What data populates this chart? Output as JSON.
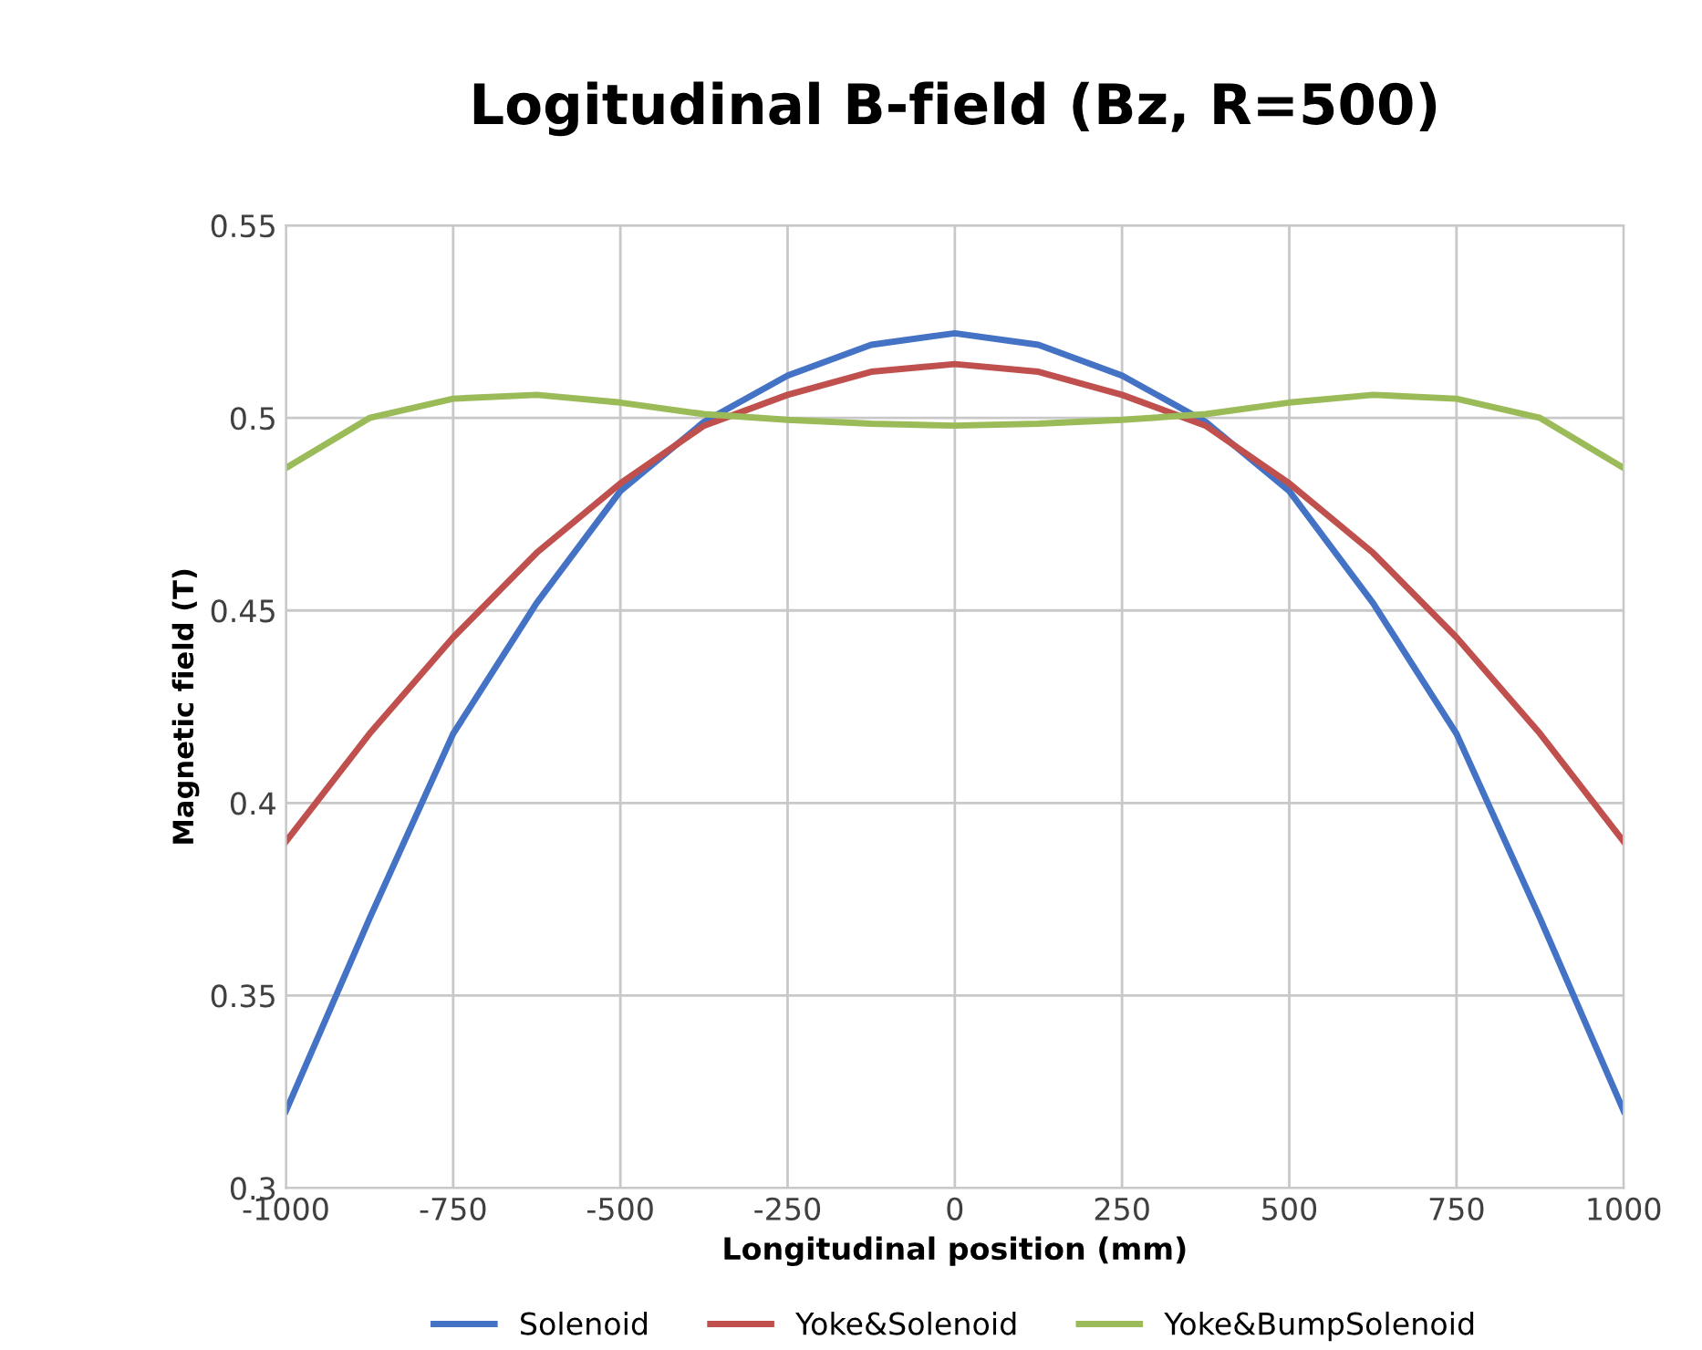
{
  "chart_data": {
    "type": "line",
    "title": "Logitudinal B-field (Bz, R=500)",
    "xlabel": "Longitudinal position (mm)",
    "ylabel": "Magnetic field (T)",
    "x": [
      -1000,
      -875,
      -750,
      -625,
      -500,
      -375,
      -250,
      -125,
      0,
      125,
      250,
      375,
      500,
      625,
      750,
      875,
      1000
    ],
    "series": [
      {
        "name": "Solenoid",
        "color": "#4472c4",
        "values": [
          0.32,
          0.37,
          0.418,
          0.452,
          0.481,
          0.499,
          0.511,
          0.519,
          0.522,
          0.519,
          0.511,
          0.499,
          0.481,
          0.452,
          0.418,
          0.37,
          0.32
        ]
      },
      {
        "name": "Yoke&Solenoid",
        "color": "#c0504d",
        "values": [
          0.39,
          0.418,
          0.443,
          0.465,
          0.483,
          0.498,
          0.506,
          0.512,
          0.514,
          0.512,
          0.506,
          0.498,
          0.483,
          0.465,
          0.443,
          0.418,
          0.39
        ]
      },
      {
        "name": "Yoke&BumpSolenoid",
        "color": "#9bbb59",
        "values": [
          0.487,
          0.5,
          0.505,
          0.506,
          0.504,
          0.501,
          0.4995,
          0.4985,
          0.498,
          0.4985,
          0.4995,
          0.501,
          0.504,
          0.506,
          0.505,
          0.5,
          0.487
        ]
      }
    ],
    "xlim": [
      -1000,
      1000
    ],
    "xticks": [
      -1000,
      -750,
      -500,
      -250,
      0,
      250,
      500,
      750,
      1000
    ],
    "ylim": [
      0.3,
      0.55
    ],
    "yticks": [
      0.3,
      0.35,
      0.4,
      0.45,
      0.5,
      0.55
    ],
    "grid": true,
    "legend": "bottom",
    "marker": "none",
    "line_style": "solid"
  }
}
